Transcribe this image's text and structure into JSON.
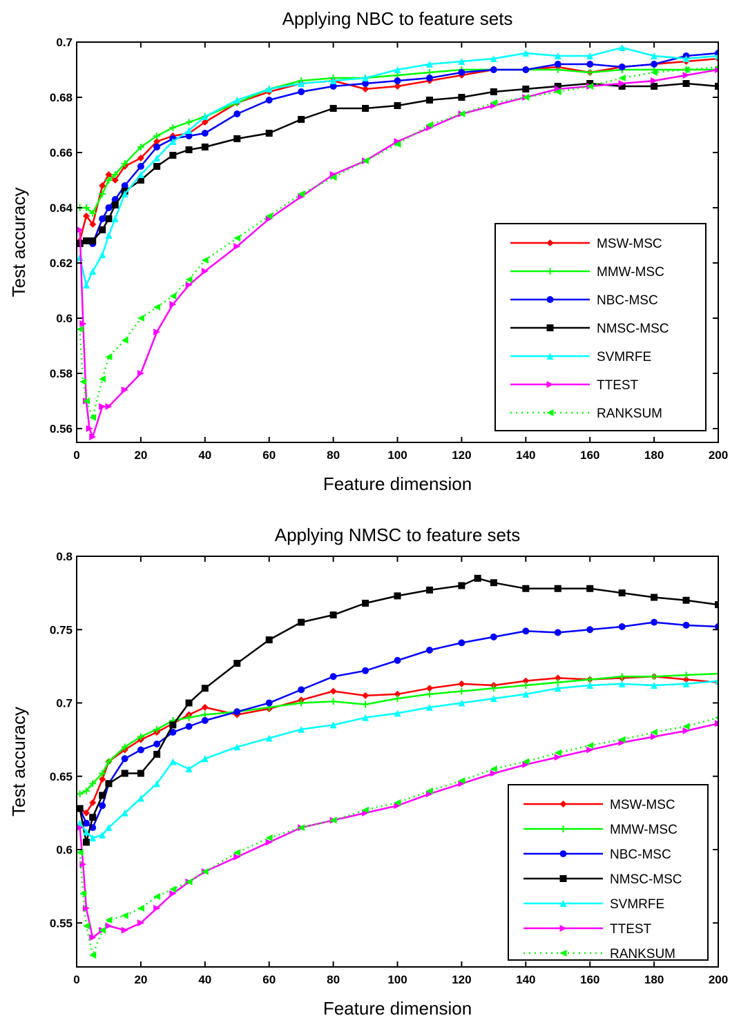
{
  "chart_data": [
    {
      "type": "line",
      "title": "Applying NBC to feature sets",
      "xlabel": "Feature dimension",
      "ylabel": "Test accuracy",
      "xlim": [
        0,
        200
      ],
      "ylim": [
        0.555,
        0.7
      ],
      "xticks": [
        0,
        20,
        40,
        60,
        80,
        100,
        120,
        140,
        160,
        180,
        200
      ],
      "xtick_labels": [
        "0",
        "20",
        "40",
        "60",
        "80",
        "100",
        "120",
        "140",
        "160",
        "180",
        "200"
      ],
      "yticks": [
        0.56,
        0.58,
        0.6,
        0.62,
        0.64,
        0.66,
        0.68,
        0.7
      ],
      "ytick_labels": [
        "0.56",
        "0.58",
        "0.6",
        "0.62",
        "0.64",
        "0.66",
        "0.68",
        "0.7"
      ],
      "grid": false,
      "legend_position": "center-right",
      "series": [
        {
          "name": "MSW-MSC",
          "color": "#ff0000",
          "marker": "diamond",
          "line": "solid",
          "x": [
            1,
            3,
            5,
            8,
            10,
            12,
            15,
            20,
            25,
            30,
            35,
            40,
            50,
            60,
            70,
            80,
            90,
            100,
            110,
            120,
            130,
            140,
            150,
            160,
            170,
            180,
            190,
            200
          ],
          "y": [
            0.628,
            0.637,
            0.634,
            0.648,
            0.652,
            0.65,
            0.655,
            0.658,
            0.664,
            0.666,
            0.667,
            0.671,
            0.678,
            0.682,
            0.685,
            0.686,
            0.683,
            0.684,
            0.686,
            0.688,
            0.69,
            0.69,
            0.691,
            0.689,
            0.691,
            0.692,
            0.693,
            0.694
          ]
        },
        {
          "name": "MMW-MSC",
          "color": "#00ff00",
          "marker": "plus",
          "line": "solid",
          "x": [
            1,
            3,
            5,
            8,
            10,
            12,
            15,
            20,
            25,
            30,
            35,
            40,
            50,
            60,
            70,
            80,
            90,
            100,
            110,
            120,
            130,
            140,
            150,
            160,
            170,
            180,
            190,
            200
          ],
          "y": [
            0.64,
            0.64,
            0.638,
            0.645,
            0.65,
            0.652,
            0.656,
            0.662,
            0.666,
            0.669,
            0.671,
            0.673,
            0.678,
            0.683,
            0.686,
            0.687,
            0.687,
            0.688,
            0.689,
            0.69,
            0.69,
            0.69,
            0.69,
            0.689,
            0.69,
            0.69,
            0.69,
            0.69
          ]
        },
        {
          "name": "NBC-MSC",
          "color": "#0000ff",
          "marker": "circle",
          "line": "solid",
          "x": [
            1,
            3,
            5,
            8,
            10,
            12,
            15,
            20,
            25,
            30,
            35,
            40,
            50,
            60,
            70,
            80,
            90,
            100,
            110,
            120,
            130,
            140,
            150,
            160,
            170,
            180,
            190,
            200
          ],
          "y": [
            0.627,
            0.628,
            0.627,
            0.636,
            0.64,
            0.643,
            0.648,
            0.655,
            0.662,
            0.665,
            0.666,
            0.667,
            0.674,
            0.679,
            0.682,
            0.684,
            0.685,
            0.686,
            0.687,
            0.689,
            0.69,
            0.69,
            0.692,
            0.692,
            0.691,
            0.692,
            0.695,
            0.696
          ]
        },
        {
          "name": "NMSC-MSC",
          "color": "#000000",
          "marker": "square",
          "line": "solid",
          "x": [
            1,
            3,
            5,
            8,
            10,
            12,
            15,
            20,
            25,
            30,
            35,
            40,
            50,
            60,
            70,
            80,
            90,
            100,
            110,
            120,
            130,
            140,
            150,
            160,
            170,
            180,
            190,
            200
          ],
          "y": [
            0.627,
            0.628,
            0.628,
            0.632,
            0.636,
            0.641,
            0.646,
            0.65,
            0.655,
            0.659,
            0.661,
            0.662,
            0.665,
            0.667,
            0.672,
            0.676,
            0.676,
            0.677,
            0.679,
            0.68,
            0.682,
            0.683,
            0.684,
            0.685,
            0.684,
            0.684,
            0.685,
            0.684
          ]
        },
        {
          "name": "SVMRFE",
          "color": "#00ffff",
          "marker": "triangle-up",
          "line": "solid",
          "x": [
            1,
            3,
            5,
            8,
            10,
            12,
            15,
            20,
            25,
            30,
            35,
            40,
            50,
            60,
            70,
            80,
            90,
            100,
            110,
            120,
            130,
            140,
            150,
            160,
            170,
            180,
            190,
            200
          ],
          "y": [
            0.622,
            0.612,
            0.617,
            0.623,
            0.63,
            0.636,
            0.645,
            0.652,
            0.658,
            0.664,
            0.668,
            0.673,
            0.679,
            0.683,
            0.685,
            0.686,
            0.687,
            0.69,
            0.692,
            0.693,
            0.694,
            0.696,
            0.695,
            0.695,
            0.698,
            0.695,
            0.694,
            0.695
          ]
        },
        {
          "name": "TTEST",
          "color": "#ff00ff",
          "marker": "triangle-right",
          "line": "solid",
          "x": [
            1,
            2,
            3,
            4,
            5,
            8,
            10,
            15,
            20,
            25,
            30,
            35,
            40,
            50,
            60,
            70,
            80,
            90,
            100,
            110,
            120,
            130,
            140,
            150,
            160,
            170,
            180,
            190,
            200
          ],
          "y": [
            0.632,
            0.598,
            0.57,
            0.56,
            0.557,
            0.568,
            0.568,
            0.574,
            0.58,
            0.595,
            0.605,
            0.612,
            0.617,
            0.626,
            0.636,
            0.644,
            0.652,
            0.657,
            0.664,
            0.669,
            0.674,
            0.677,
            0.68,
            0.683,
            0.684,
            0.685,
            0.686,
            0.688,
            0.69
          ]
        },
        {
          "name": "RANKSUM",
          "color": "#00ff00",
          "marker": "triangle-left",
          "line": "dotted",
          "x": [
            1,
            2,
            3,
            5,
            8,
            10,
            15,
            20,
            25,
            30,
            35,
            40,
            50,
            60,
            70,
            80,
            90,
            100,
            110,
            120,
            130,
            140,
            150,
            160,
            170,
            180,
            190,
            200
          ],
          "y": [
            0.596,
            0.577,
            0.57,
            0.564,
            0.578,
            0.586,
            0.592,
            0.6,
            0.604,
            0.608,
            0.614,
            0.621,
            0.629,
            0.637,
            0.645,
            0.651,
            0.657,
            0.663,
            0.67,
            0.674,
            0.678,
            0.68,
            0.682,
            0.684,
            0.687,
            0.689,
            0.69,
            0.691
          ]
        }
      ]
    },
    {
      "type": "line",
      "title": "Applying NMSC to feature sets",
      "xlabel": "Feature dimension",
      "ylabel": "Test accuracy",
      "xlim": [
        0,
        200
      ],
      "ylim": [
        0.52,
        0.8
      ],
      "xticks": [
        0,
        20,
        40,
        60,
        80,
        100,
        120,
        140,
        160,
        180,
        200
      ],
      "xtick_labels": [
        "0",
        "20",
        "40",
        "60",
        "80",
        "100",
        "120",
        "140",
        "160",
        "180",
        "200"
      ],
      "yticks": [
        0.55,
        0.6,
        0.65,
        0.7,
        0.75,
        0.8
      ],
      "ytick_labels": [
        "0.55",
        "0.6",
        "0.65",
        "0.7",
        "0.75",
        "0.8"
      ],
      "grid": false,
      "legend_position": "bottom-right",
      "series": [
        {
          "name": "MSW-MSC",
          "color": "#ff0000",
          "marker": "diamond",
          "line": "solid",
          "x": [
            1,
            3,
            5,
            8,
            10,
            15,
            20,
            25,
            30,
            35,
            40,
            50,
            60,
            70,
            80,
            90,
            100,
            110,
            120,
            130,
            140,
            150,
            160,
            170,
            180,
            190,
            200
          ],
          "y": [
            0.628,
            0.625,
            0.632,
            0.648,
            0.66,
            0.668,
            0.675,
            0.68,
            0.686,
            0.692,
            0.697,
            0.692,
            0.696,
            0.702,
            0.708,
            0.705,
            0.706,
            0.71,
            0.713,
            0.712,
            0.715,
            0.717,
            0.716,
            0.717,
            0.718,
            0.716,
            0.714
          ]
        },
        {
          "name": "MMW-MSC",
          "color": "#00ff00",
          "marker": "plus",
          "line": "solid",
          "x": [
            1,
            3,
            5,
            8,
            10,
            15,
            20,
            25,
            30,
            35,
            40,
            50,
            60,
            70,
            80,
            90,
            100,
            110,
            120,
            130,
            140,
            150,
            160,
            170,
            180,
            190,
            200
          ],
          "y": [
            0.638,
            0.64,
            0.645,
            0.652,
            0.66,
            0.67,
            0.677,
            0.682,
            0.688,
            0.69,
            0.692,
            0.694,
            0.697,
            0.7,
            0.701,
            0.699,
            0.703,
            0.706,
            0.708,
            0.71,
            0.712,
            0.714,
            0.716,
            0.718,
            0.718,
            0.719,
            0.72
          ]
        },
        {
          "name": "NBC-MSC",
          "color": "#0000ff",
          "marker": "circle",
          "line": "solid",
          "x": [
            1,
            3,
            5,
            8,
            10,
            15,
            20,
            25,
            30,
            35,
            40,
            50,
            60,
            70,
            80,
            90,
            100,
            110,
            120,
            130,
            140,
            150,
            160,
            170,
            180,
            190,
            200
          ],
          "y": [
            0.628,
            0.618,
            0.615,
            0.63,
            0.645,
            0.662,
            0.668,
            0.672,
            0.68,
            0.684,
            0.688,
            0.694,
            0.7,
            0.709,
            0.718,
            0.722,
            0.729,
            0.736,
            0.741,
            0.745,
            0.749,
            0.748,
            0.75,
            0.752,
            0.755,
            0.753,
            0.752
          ]
        },
        {
          "name": "NMSC-MSC",
          "color": "#000000",
          "marker": "square",
          "line": "solid",
          "x": [
            1,
            3,
            5,
            8,
            10,
            15,
            20,
            25,
            30,
            35,
            40,
            50,
            60,
            70,
            80,
            90,
            100,
            110,
            120,
            125,
            130,
            140,
            150,
            160,
            170,
            180,
            190,
            200
          ],
          "y": [
            0.628,
            0.605,
            0.622,
            0.637,
            0.645,
            0.652,
            0.652,
            0.665,
            0.685,
            0.7,
            0.71,
            0.727,
            0.743,
            0.755,
            0.76,
            0.768,
            0.773,
            0.777,
            0.78,
            0.785,
            0.782,
            0.778,
            0.778,
            0.778,
            0.775,
            0.772,
            0.77,
            0.767
          ]
        },
        {
          "name": "SVMRFE",
          "color": "#00ffff",
          "marker": "triangle-up",
          "line": "solid",
          "x": [
            1,
            3,
            5,
            8,
            10,
            15,
            20,
            25,
            30,
            35,
            40,
            50,
            60,
            70,
            80,
            90,
            100,
            110,
            120,
            130,
            140,
            150,
            160,
            170,
            180,
            190,
            200
          ],
          "y": [
            0.618,
            0.612,
            0.608,
            0.61,
            0.615,
            0.625,
            0.635,
            0.645,
            0.66,
            0.655,
            0.662,
            0.67,
            0.676,
            0.682,
            0.685,
            0.69,
            0.693,
            0.697,
            0.7,
            0.703,
            0.706,
            0.71,
            0.712,
            0.713,
            0.712,
            0.713,
            0.715
          ]
        },
        {
          "name": "TTEST",
          "color": "#ff00ff",
          "marker": "triangle-right",
          "line": "solid",
          "x": [
            1,
            2,
            3,
            5,
            8,
            10,
            15,
            20,
            25,
            30,
            35,
            40,
            50,
            60,
            70,
            80,
            90,
            100,
            110,
            120,
            130,
            140,
            150,
            160,
            170,
            180,
            190,
            200
          ],
          "y": [
            0.615,
            0.59,
            0.56,
            0.54,
            0.545,
            0.548,
            0.545,
            0.55,
            0.56,
            0.57,
            0.578,
            0.585,
            0.595,
            0.605,
            0.615,
            0.62,
            0.625,
            0.63,
            0.638,
            0.645,
            0.652,
            0.658,
            0.663,
            0.668,
            0.673,
            0.677,
            0.681,
            0.686
          ]
        },
        {
          "name": "RANKSUM",
          "color": "#00ff00",
          "marker": "triangle-left",
          "line": "dotted",
          "x": [
            1,
            2,
            3,
            5,
            8,
            10,
            15,
            20,
            25,
            30,
            35,
            40,
            50,
            60,
            70,
            80,
            90,
            100,
            110,
            120,
            130,
            140,
            150,
            160,
            170,
            180,
            190,
            200
          ],
          "y": [
            0.598,
            0.57,
            0.548,
            0.528,
            0.545,
            0.552,
            0.555,
            0.56,
            0.568,
            0.573,
            0.578,
            0.585,
            0.598,
            0.608,
            0.615,
            0.62,
            0.627,
            0.632,
            0.64,
            0.647,
            0.655,
            0.66,
            0.666,
            0.671,
            0.675,
            0.68,
            0.684,
            0.69
          ]
        }
      ]
    }
  ]
}
